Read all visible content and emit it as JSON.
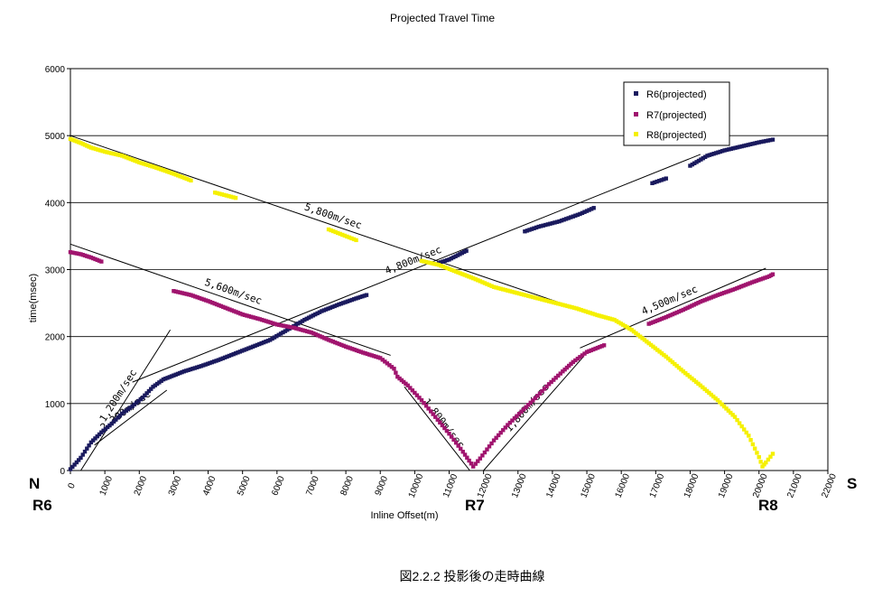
{
  "chart_data": {
    "type": "scatter",
    "title": "Projected Travel Time",
    "xlabel": "Inline Offset(m)",
    "ylabel": "time(msec)",
    "xlim": [
      0,
      22000
    ],
    "ylim": [
      0,
      6000
    ],
    "x_ticks": [
      "0",
      "1000",
      "2000",
      "3000",
      "4000",
      "5000",
      "6000",
      "7000",
      "8000",
      "9000",
      "10000",
      "11000",
      "12000",
      "13000",
      "14000",
      "15000",
      "16000",
      "17000",
      "18000",
      "19000",
      "20000",
      "21000",
      "22000"
    ],
    "y_ticks": [
      "0",
      "1000",
      "2000",
      "3000",
      "4000",
      "5000",
      "6000"
    ],
    "grid": "horizontal",
    "legend_position": "top-right",
    "series": [
      {
        "name": "R6(projected)",
        "color": "#1a1a5e",
        "points": [
          [
            0,
            20
          ],
          [
            300,
            190
          ],
          [
            600,
            420
          ],
          [
            900,
            570
          ],
          [
            1200,
            700
          ],
          [
            1500,
            850
          ],
          [
            1800,
            960
          ],
          [
            2100,
            1090
          ],
          [
            2400,
            1250
          ],
          [
            2700,
            1360
          ],
          [
            3000,
            1420
          ],
          [
            3300,
            1480
          ],
          [
            3800,
            1560
          ],
          [
            4300,
            1650
          ],
          [
            4800,
            1750
          ],
          [
            5300,
            1850
          ],
          [
            5800,
            1950
          ],
          [
            6300,
            2100
          ],
          [
            6800,
            2250
          ],
          [
            7300,
            2380
          ],
          [
            7800,
            2480
          ],
          [
            8300,
            2570
          ],
          [
            8600,
            2620
          ],
          [
            10700,
            3100
          ],
          [
            11000,
            3150
          ],
          [
            11500,
            3280
          ],
          [
            13200,
            3570
          ],
          [
            13600,
            3640
          ],
          [
            14200,
            3720
          ],
          [
            14800,
            3830
          ],
          [
            15200,
            3920
          ],
          [
            16900,
            4290
          ],
          [
            17300,
            4360
          ],
          [
            18000,
            4550
          ],
          [
            18500,
            4700
          ],
          [
            19000,
            4780
          ],
          [
            19500,
            4840
          ],
          [
            20000,
            4900
          ],
          [
            20400,
            4940
          ]
        ]
      },
      {
        "name": "R7(projected)",
        "color": "#a0146e",
        "points": [
          [
            0,
            3260
          ],
          [
            300,
            3230
          ],
          [
            600,
            3180
          ],
          [
            900,
            3120
          ],
          [
            3000,
            2680
          ],
          [
            3500,
            2620
          ],
          [
            4000,
            2530
          ],
          [
            4500,
            2430
          ],
          [
            5000,
            2330
          ],
          [
            5500,
            2260
          ],
          [
            6000,
            2180
          ],
          [
            6500,
            2130
          ],
          [
            7000,
            2060
          ],
          [
            7500,
            1950
          ],
          [
            8000,
            1850
          ],
          [
            8500,
            1760
          ],
          [
            9000,
            1680
          ],
          [
            9400,
            1520
          ],
          [
            9500,
            1400
          ],
          [
            9800,
            1270
          ],
          [
            10200,
            1050
          ],
          [
            10600,
            800
          ],
          [
            11000,
            550
          ],
          [
            11400,
            280
          ],
          [
            11700,
            60
          ],
          [
            11900,
            180
          ],
          [
            12300,
            450
          ],
          [
            12700,
            680
          ],
          [
            13100,
            880
          ],
          [
            13500,
            1080
          ],
          [
            13900,
            1290
          ],
          [
            14300,
            1480
          ],
          [
            14600,
            1620
          ],
          [
            15000,
            1770
          ],
          [
            15500,
            1870
          ],
          [
            16800,
            2190
          ],
          [
            17300,
            2290
          ],
          [
            17800,
            2400
          ],
          [
            18300,
            2520
          ],
          [
            18800,
            2620
          ],
          [
            19300,
            2710
          ],
          [
            19800,
            2810
          ],
          [
            20300,
            2900
          ],
          [
            20400,
            2930
          ]
        ]
      },
      {
        "name": "R8(projected)",
        "color": "#f5f000",
        "points": [
          [
            0,
            4950
          ],
          [
            300,
            4890
          ],
          [
            600,
            4820
          ],
          [
            1000,
            4760
          ],
          [
            1500,
            4700
          ],
          [
            2000,
            4600
          ],
          [
            2500,
            4520
          ],
          [
            3000,
            4430
          ],
          [
            3500,
            4330
          ],
          [
            4200,
            4150
          ],
          [
            4800,
            4070
          ],
          [
            7500,
            3600
          ],
          [
            7900,
            3520
          ],
          [
            8300,
            3440
          ],
          [
            10200,
            3130
          ],
          [
            10700,
            3070
          ],
          [
            11200,
            2970
          ],
          [
            11700,
            2870
          ],
          [
            12300,
            2740
          ],
          [
            12900,
            2660
          ],
          [
            13500,
            2580
          ],
          [
            14100,
            2500
          ],
          [
            14700,
            2420
          ],
          [
            15300,
            2320
          ],
          [
            15800,
            2250
          ],
          [
            16300,
            2100
          ],
          [
            16800,
            1900
          ],
          [
            17300,
            1700
          ],
          [
            17800,
            1480
          ],
          [
            18300,
            1270
          ],
          [
            18800,
            1050
          ],
          [
            19300,
            800
          ],
          [
            19700,
            520
          ],
          [
            20000,
            200
          ],
          [
            20100,
            60
          ],
          [
            20200,
            120
          ],
          [
            20400,
            250
          ]
        ]
      }
    ],
    "reference_lines": [
      {
        "label": "5,800m/sec",
        "from": [
          0,
          5000
        ],
        "to": [
          15100,
          2350
        ]
      },
      {
        "label": "5,600m/sec",
        "from": [
          0,
          3380
        ],
        "to": [
          9300,
          1720
        ]
      },
      {
        "label": "4,800m/sec",
        "from": [
          1800,
          1320
        ],
        "to": [
          18300,
          4720
        ]
      },
      {
        "label": "4,500m/sec",
        "from": [
          14800,
          1830
        ],
        "to": [
          20200,
          3020
        ]
      },
      {
        "label": "2,300m/sec",
        "from": [
          700,
          380
        ],
        "to": [
          2800,
          1200
        ]
      },
      {
        "label": "1,200m/sec",
        "from": [
          300,
          0
        ],
        "to": [
          2900,
          2100
        ]
      },
      {
        "label": "1,800m/sec",
        "from": [
          9700,
          1250
        ],
        "to": [
          11600,
          0
        ]
      },
      {
        "label": "1,800m/sec",
        "from": [
          12000,
          0
        ],
        "to": [
          14900,
          1700
        ]
      }
    ]
  },
  "labels": {
    "north": "N",
    "south": "S",
    "station_r6": "R6",
    "station_r7": "R7",
    "station_r8": "R8",
    "caption": "図2.2.2  投影後の走時曲線"
  }
}
